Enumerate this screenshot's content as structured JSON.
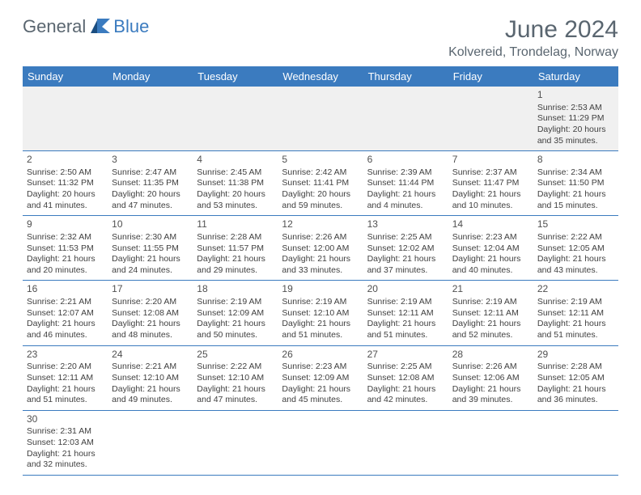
{
  "brand": {
    "part1": "General",
    "part2": "Blue",
    "logo_color": "#3b7bbf"
  },
  "title": "June 2024",
  "location": "Kolvereid, Trondelag, Norway",
  "header_bg": "#3b7bbf",
  "header_fg": "#ffffff",
  "border_color": "#3b7bbf",
  "alt_row_bg": "#f0f0f0",
  "text_color": "#404040",
  "day_names": [
    "Sunday",
    "Monday",
    "Tuesday",
    "Wednesday",
    "Thursday",
    "Friday",
    "Saturday"
  ],
  "weeks": [
    [
      null,
      null,
      null,
      null,
      null,
      null,
      {
        "n": "1",
        "sr": "Sunrise: 2:53 AM",
        "ss": "Sunset: 11:29 PM",
        "d1": "Daylight: 20 hours",
        "d2": "and 35 minutes."
      }
    ],
    [
      {
        "n": "2",
        "sr": "Sunrise: 2:50 AM",
        "ss": "Sunset: 11:32 PM",
        "d1": "Daylight: 20 hours",
        "d2": "and 41 minutes."
      },
      {
        "n": "3",
        "sr": "Sunrise: 2:47 AM",
        "ss": "Sunset: 11:35 PM",
        "d1": "Daylight: 20 hours",
        "d2": "and 47 minutes."
      },
      {
        "n": "4",
        "sr": "Sunrise: 2:45 AM",
        "ss": "Sunset: 11:38 PM",
        "d1": "Daylight: 20 hours",
        "d2": "and 53 minutes."
      },
      {
        "n": "5",
        "sr": "Sunrise: 2:42 AM",
        "ss": "Sunset: 11:41 PM",
        "d1": "Daylight: 20 hours",
        "d2": "and 59 minutes."
      },
      {
        "n": "6",
        "sr": "Sunrise: 2:39 AM",
        "ss": "Sunset: 11:44 PM",
        "d1": "Daylight: 21 hours",
        "d2": "and 4 minutes."
      },
      {
        "n": "7",
        "sr": "Sunrise: 2:37 AM",
        "ss": "Sunset: 11:47 PM",
        "d1": "Daylight: 21 hours",
        "d2": "and 10 minutes."
      },
      {
        "n": "8",
        "sr": "Sunrise: 2:34 AM",
        "ss": "Sunset: 11:50 PM",
        "d1": "Daylight: 21 hours",
        "d2": "and 15 minutes."
      }
    ],
    [
      {
        "n": "9",
        "sr": "Sunrise: 2:32 AM",
        "ss": "Sunset: 11:53 PM",
        "d1": "Daylight: 21 hours",
        "d2": "and 20 minutes."
      },
      {
        "n": "10",
        "sr": "Sunrise: 2:30 AM",
        "ss": "Sunset: 11:55 PM",
        "d1": "Daylight: 21 hours",
        "d2": "and 24 minutes."
      },
      {
        "n": "11",
        "sr": "Sunrise: 2:28 AM",
        "ss": "Sunset: 11:57 PM",
        "d1": "Daylight: 21 hours",
        "d2": "and 29 minutes."
      },
      {
        "n": "12",
        "sr": "Sunrise: 2:26 AM",
        "ss": "Sunset: 12:00 AM",
        "d1": "Daylight: 21 hours",
        "d2": "and 33 minutes."
      },
      {
        "n": "13",
        "sr": "Sunrise: 2:25 AM",
        "ss": "Sunset: 12:02 AM",
        "d1": "Daylight: 21 hours",
        "d2": "and 37 minutes."
      },
      {
        "n": "14",
        "sr": "Sunrise: 2:23 AM",
        "ss": "Sunset: 12:04 AM",
        "d1": "Daylight: 21 hours",
        "d2": "and 40 minutes."
      },
      {
        "n": "15",
        "sr": "Sunrise: 2:22 AM",
        "ss": "Sunset: 12:05 AM",
        "d1": "Daylight: 21 hours",
        "d2": "and 43 minutes."
      }
    ],
    [
      {
        "n": "16",
        "sr": "Sunrise: 2:21 AM",
        "ss": "Sunset: 12:07 AM",
        "d1": "Daylight: 21 hours",
        "d2": "and 46 minutes."
      },
      {
        "n": "17",
        "sr": "Sunrise: 2:20 AM",
        "ss": "Sunset: 12:08 AM",
        "d1": "Daylight: 21 hours",
        "d2": "and 48 minutes."
      },
      {
        "n": "18",
        "sr": "Sunrise: 2:19 AM",
        "ss": "Sunset: 12:09 AM",
        "d1": "Daylight: 21 hours",
        "d2": "and 50 minutes."
      },
      {
        "n": "19",
        "sr": "Sunrise: 2:19 AM",
        "ss": "Sunset: 12:10 AM",
        "d1": "Daylight: 21 hours",
        "d2": "and 51 minutes."
      },
      {
        "n": "20",
        "sr": "Sunrise: 2:19 AM",
        "ss": "Sunset: 12:11 AM",
        "d1": "Daylight: 21 hours",
        "d2": "and 51 minutes."
      },
      {
        "n": "21",
        "sr": "Sunrise: 2:19 AM",
        "ss": "Sunset: 12:11 AM",
        "d1": "Daylight: 21 hours",
        "d2": "and 52 minutes."
      },
      {
        "n": "22",
        "sr": "Sunrise: 2:19 AM",
        "ss": "Sunset: 12:11 AM",
        "d1": "Daylight: 21 hours",
        "d2": "and 51 minutes."
      }
    ],
    [
      {
        "n": "23",
        "sr": "Sunrise: 2:20 AM",
        "ss": "Sunset: 12:11 AM",
        "d1": "Daylight: 21 hours",
        "d2": "and 51 minutes."
      },
      {
        "n": "24",
        "sr": "Sunrise: 2:21 AM",
        "ss": "Sunset: 12:10 AM",
        "d1": "Daylight: 21 hours",
        "d2": "and 49 minutes."
      },
      {
        "n": "25",
        "sr": "Sunrise: 2:22 AM",
        "ss": "Sunset: 12:10 AM",
        "d1": "Daylight: 21 hours",
        "d2": "and 47 minutes."
      },
      {
        "n": "26",
        "sr": "Sunrise: 2:23 AM",
        "ss": "Sunset: 12:09 AM",
        "d1": "Daylight: 21 hours",
        "d2": "and 45 minutes."
      },
      {
        "n": "27",
        "sr": "Sunrise: 2:25 AM",
        "ss": "Sunset: 12:08 AM",
        "d1": "Daylight: 21 hours",
        "d2": "and 42 minutes."
      },
      {
        "n": "28",
        "sr": "Sunrise: 2:26 AM",
        "ss": "Sunset: 12:06 AM",
        "d1": "Daylight: 21 hours",
        "d2": "and 39 minutes."
      },
      {
        "n": "29",
        "sr": "Sunrise: 2:28 AM",
        "ss": "Sunset: 12:05 AM",
        "d1": "Daylight: 21 hours",
        "d2": "and 36 minutes."
      }
    ],
    [
      {
        "n": "30",
        "sr": "Sunrise: 2:31 AM",
        "ss": "Sunset: 12:03 AM",
        "d1": "Daylight: 21 hours",
        "d2": "and 32 minutes."
      },
      null,
      null,
      null,
      null,
      null,
      null
    ]
  ]
}
